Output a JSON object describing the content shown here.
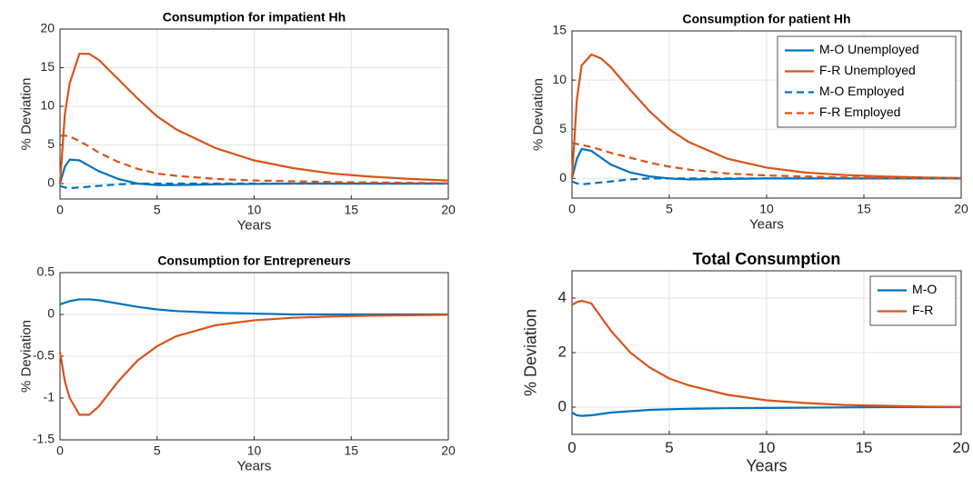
{
  "chart_data": [
    {
      "type": "line",
      "title": "Consumption for impatient Hh",
      "xlabel": "Years",
      "ylabel": "% Deviation",
      "x": [
        0,
        0.25,
        0.5,
        1,
        1.5,
        2,
        3,
        4,
        5,
        6,
        8,
        10,
        12,
        14,
        16,
        18,
        20
      ],
      "xlim": [
        0,
        20
      ],
      "xticks": [
        0,
        5,
        10,
        15,
        20
      ],
      "ylim": [
        -2,
        20
      ],
      "yticks": [
        0,
        5,
        10,
        15,
        20
      ],
      "grid": true,
      "series": [
        {
          "color": "#0072BD",
          "dashed": false,
          "values": [
            0,
            2.2,
            3.1,
            3.0,
            2.3,
            1.6,
            0.6,
            0,
            -0.2,
            -0.2,
            -0.1,
            -0.05,
            0,
            0,
            0,
            0,
            0
          ]
        },
        {
          "color": "#D95319",
          "dashed": false,
          "values": [
            0,
            9,
            13,
            16.8,
            16.8,
            16,
            13.5,
            11,
            8.7,
            7,
            4.6,
            3,
            2,
            1.3,
            0.9,
            0.6,
            0.4
          ]
        },
        {
          "color": "#0072BD",
          "dashed": true,
          "values": [
            -0.3,
            -0.5,
            -0.6,
            -0.5,
            -0.4,
            -0.3,
            -0.1,
            0,
            0,
            0,
            0,
            0,
            0,
            0,
            0,
            0,
            0
          ]
        },
        {
          "color": "#D95319",
          "dashed": true,
          "values": [
            6.2,
            6.2,
            6.1,
            5.5,
            4.8,
            4.0,
            2.8,
            1.9,
            1.3,
            1.0,
            0.6,
            0.4,
            0.3,
            0.2,
            0.15,
            0.1,
            0.05
          ]
        }
      ]
    },
    {
      "type": "line",
      "title": "Consumption for patient Hh",
      "xlabel": "Years",
      "ylabel": "% Deviation",
      "x": [
        0,
        0.25,
        0.5,
        1,
        1.5,
        2,
        3,
        4,
        5,
        6,
        8,
        10,
        12,
        14,
        16,
        18,
        20
      ],
      "xlim": [
        0,
        20
      ],
      "xticks": [
        0,
        5,
        10,
        15,
        20
      ],
      "ylim": [
        -2,
        15
      ],
      "yticks": [
        0,
        5,
        10,
        15
      ],
      "grid": true,
      "legend": "upper right",
      "series": [
        {
          "name": "M-O Unemployed",
          "color": "#0072BD",
          "dashed": false,
          "values": [
            0,
            2,
            3,
            2.8,
            2.1,
            1.4,
            0.6,
            0.2,
            0,
            -0.1,
            -0.05,
            0,
            0,
            0,
            0,
            0,
            0
          ]
        },
        {
          "name": "F-R Unemployed",
          "color": "#D95319",
          "dashed": false,
          "values": [
            0,
            8,
            11.5,
            12.6,
            12.2,
            11.3,
            9,
            6.8,
            5,
            3.7,
            2,
            1.1,
            0.6,
            0.35,
            0.2,
            0.1,
            0.05
          ]
        },
        {
          "name": "M-O Employed",
          "color": "#0072BD",
          "dashed": true,
          "values": [
            -0.3,
            -0.5,
            -0.6,
            -0.5,
            -0.4,
            -0.3,
            -0.1,
            0,
            0,
            0,
            0,
            0,
            0,
            0,
            0,
            0,
            0
          ]
        },
        {
          "name": "F-R Employed",
          "color": "#D95319",
          "dashed": true,
          "values": [
            3.6,
            3.5,
            3.4,
            3.2,
            2.9,
            2.6,
            2.1,
            1.6,
            1.2,
            0.9,
            0.5,
            0.3,
            0.2,
            0.1,
            0.05,
            0.03,
            0.02
          ]
        }
      ]
    },
    {
      "type": "line",
      "title": "Consumption for Entrepreneurs",
      "xlabel": "Years",
      "ylabel": "% Deviation",
      "x": [
        0,
        0.25,
        0.5,
        1,
        1.5,
        2,
        3,
        4,
        5,
        6,
        8,
        10,
        12,
        14,
        16,
        18,
        20
      ],
      "xlim": [
        0,
        20
      ],
      "xticks": [
        0,
        5,
        10,
        15,
        20
      ],
      "ylim": [
        -1.5,
        0.5
      ],
      "yticks": [
        -1.5,
        -1,
        -0.5,
        0,
        0.5
      ],
      "grid": true,
      "series": [
        {
          "color": "#0072BD",
          "dashed": false,
          "values": [
            0.12,
            0.14,
            0.16,
            0.18,
            0.18,
            0.17,
            0.13,
            0.09,
            0.06,
            0.04,
            0.02,
            0.01,
            0,
            0,
            0,
            0,
            0
          ]
        },
        {
          "color": "#D95319",
          "dashed": false,
          "values": [
            -0.45,
            -0.8,
            -1.0,
            -1.2,
            -1.2,
            -1.1,
            -0.8,
            -0.55,
            -0.38,
            -0.26,
            -0.13,
            -0.07,
            -0.04,
            -0.025,
            -0.015,
            -0.01,
            -0.005
          ]
        }
      ]
    },
    {
      "type": "line",
      "title": "Total Consumption",
      "xlabel": "Years",
      "ylabel": "% Deviation",
      "x": [
        0,
        0.25,
        0.5,
        1,
        1.5,
        2,
        3,
        4,
        5,
        6,
        8,
        10,
        12,
        14,
        16,
        18,
        20
      ],
      "xlim": [
        0,
        20
      ],
      "xticks": [
        0,
        5,
        10,
        15,
        20
      ],
      "ylim": [
        -1,
        5
      ],
      "yticks": [
        0,
        2,
        4
      ],
      "grid": true,
      "legend": "upper right",
      "series": [
        {
          "name": "M-O",
          "color": "#0072BD",
          "dashed": false,
          "values": [
            -0.2,
            -0.3,
            -0.32,
            -0.3,
            -0.25,
            -0.2,
            -0.15,
            -0.1,
            -0.08,
            -0.06,
            -0.04,
            -0.03,
            -0.02,
            -0.01,
            0,
            0,
            0
          ]
        },
        {
          "name": "F-R",
          "color": "#D95319",
          "dashed": false,
          "values": [
            3.75,
            3.85,
            3.9,
            3.8,
            3.3,
            2.8,
            2.0,
            1.45,
            1.05,
            0.8,
            0.45,
            0.25,
            0.15,
            0.08,
            0.05,
            0.02,
            0.01
          ]
        }
      ]
    }
  ]
}
